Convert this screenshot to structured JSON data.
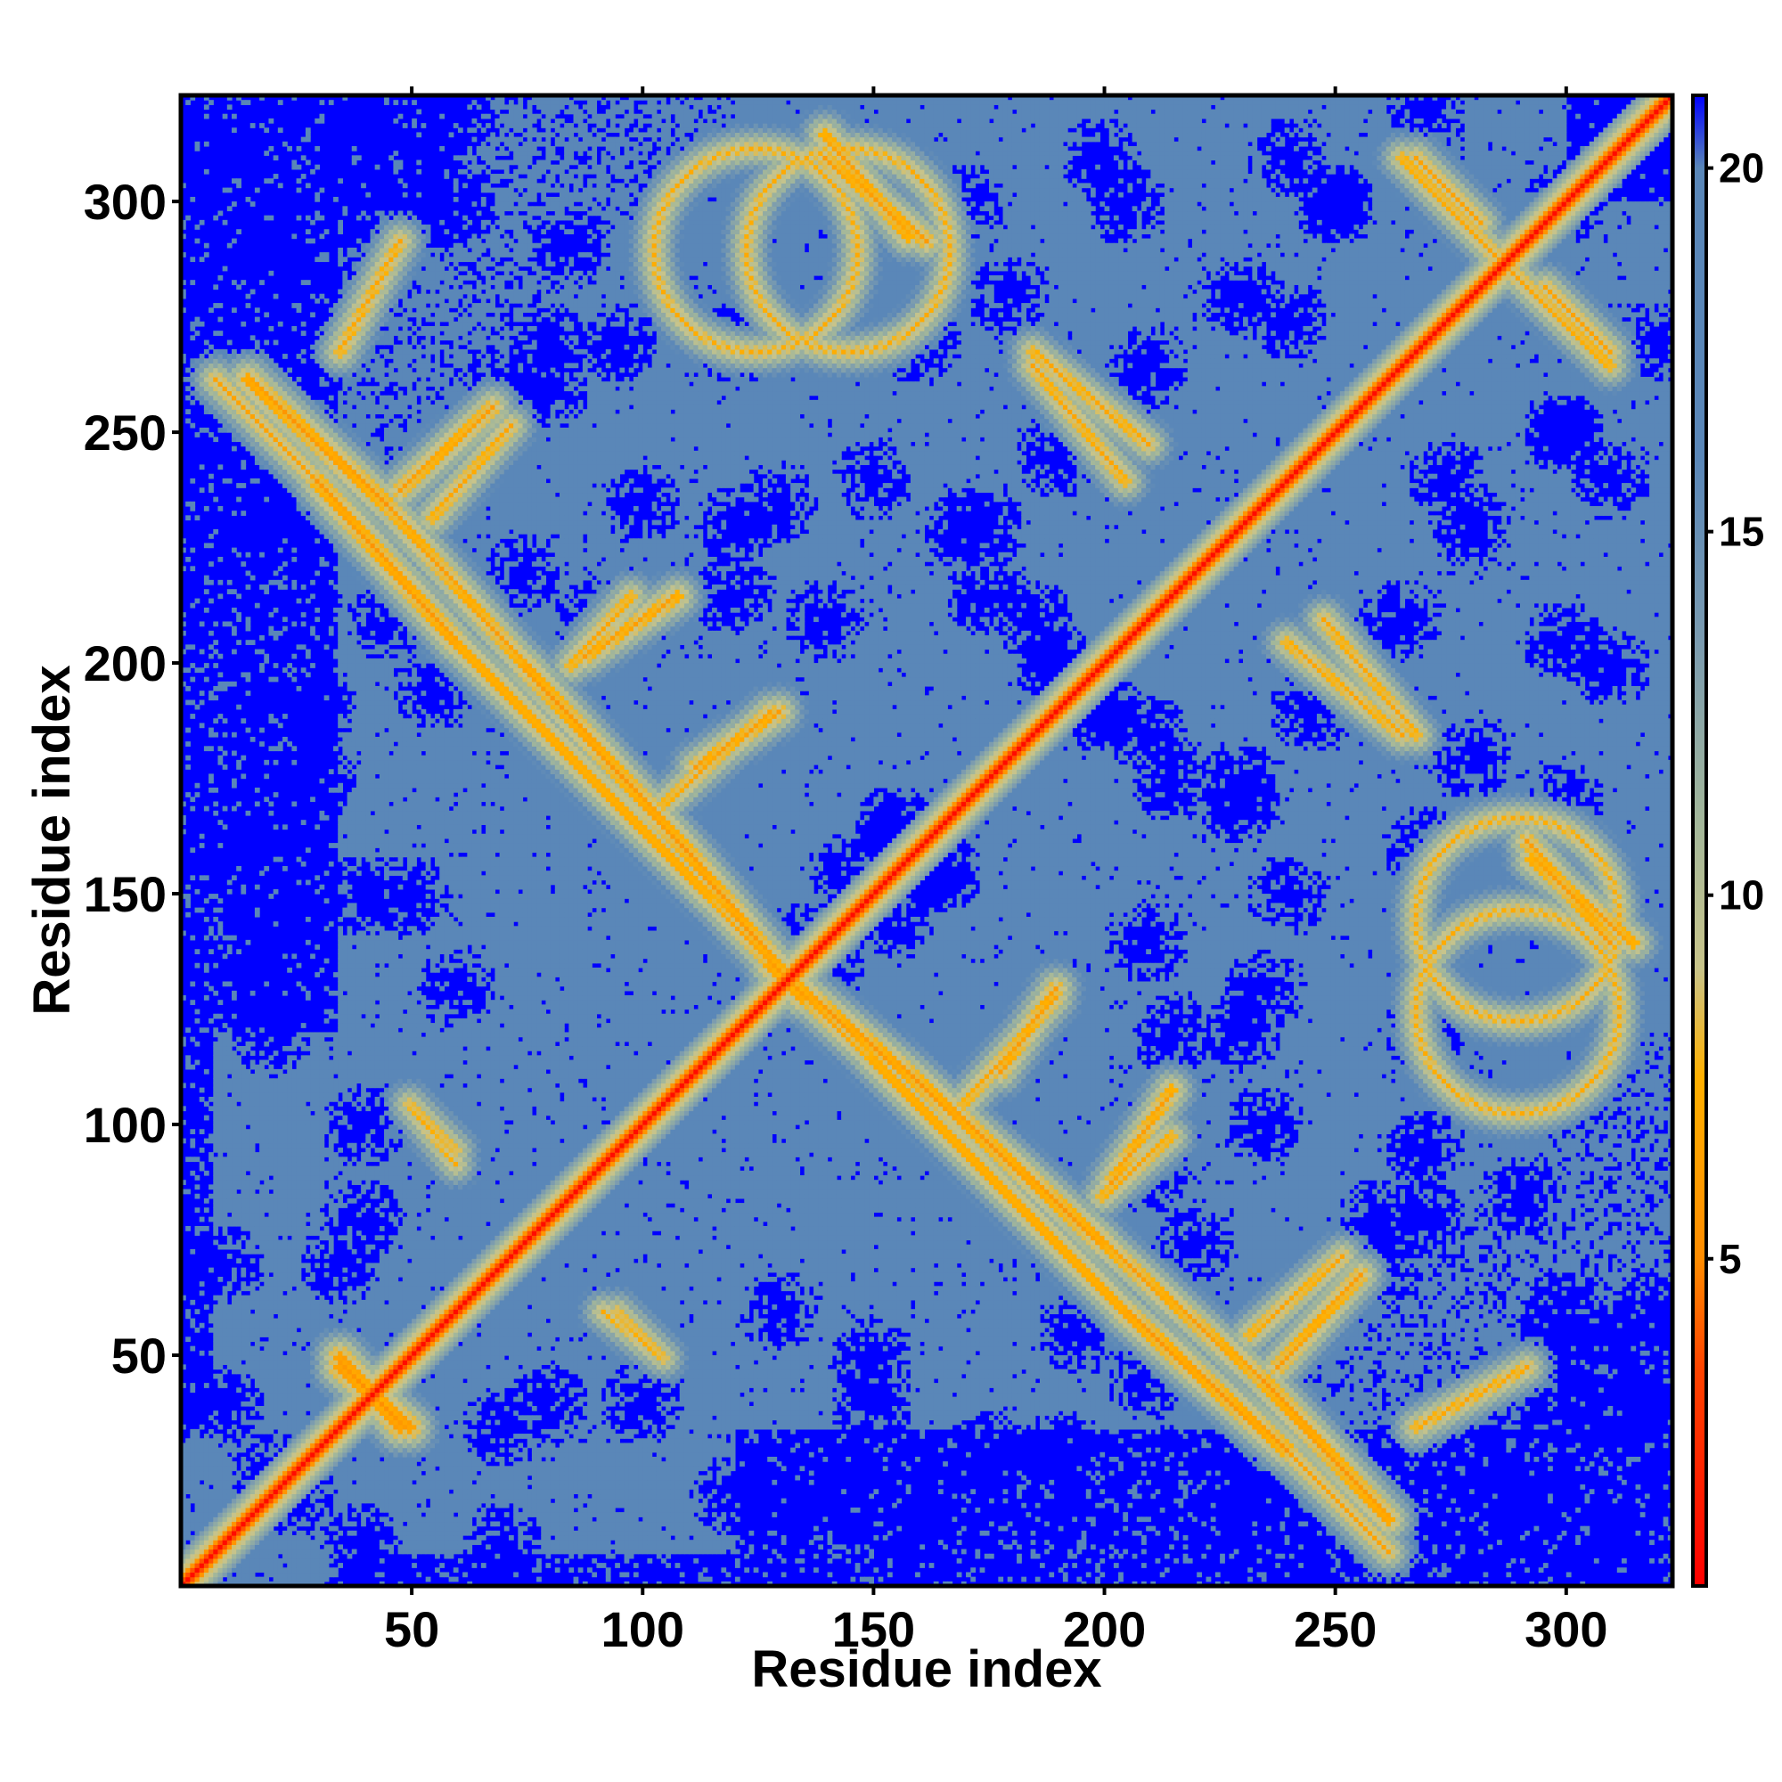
{
  "chart_data": {
    "type": "heatmap",
    "title": "",
    "xlabel": "Residue index",
    "ylabel": "Residue index",
    "xlim": [
      0,
      323
    ],
    "ylim": [
      0,
      323
    ],
    "x_ticks": [
      50,
      100,
      150,
      200,
      250,
      300
    ],
    "y_ticks": [
      50,
      100,
      150,
      200,
      250,
      300
    ],
    "colorbar": {
      "range": [
        0.5,
        21
      ],
      "ticks": [
        5,
        10,
        15,
        20
      ],
      "stops": [
        {
          "value": 0.5,
          "color": "#ff0000"
        },
        {
          "value": 3.5,
          "color": "#ff4400"
        },
        {
          "value": 5.0,
          "color": "#ff8c00"
        },
        {
          "value": 7.5,
          "color": "#ffb000"
        },
        {
          "value": 9.0,
          "color": "#c8c48a"
        },
        {
          "value": 11.0,
          "color": "#a3b79a"
        },
        {
          "value": 13.5,
          "color": "#7a9bb0"
        },
        {
          "value": 16.0,
          "color": "#5a87b8"
        },
        {
          "value": 20.0,
          "color": "#5a87b8"
        },
        {
          "value": 21.0,
          "color": "#0000ff"
        }
      ]
    },
    "symmetric": true,
    "matrix_size": 323,
    "cutoff_value": 21,
    "diagonal_value": 1.0,
    "contact_bands": [
      {
        "type": "antidiagonal",
        "from": [
          8,
          262
        ],
        "to": [
          30,
          240
        ],
        "value": 6.5
      },
      {
        "type": "antidiagonal",
        "from": [
          30,
          240
        ],
        "to": [
          60,
          205
        ],
        "value": 5.5
      },
      {
        "type": "antidiagonal",
        "from": [
          60,
          205
        ],
        "to": [
          90,
          175
        ],
        "value": 6.0
      },
      {
        "type": "antidiagonal",
        "from": [
          90,
          175
        ],
        "to": [
          115,
          150
        ],
        "value": 6.0
      },
      {
        "type": "antidiagonal",
        "from": [
          115,
          150
        ],
        "to": [
          130,
          133
        ],
        "value": 6.5
      },
      {
        "type": "parallel",
        "from": [
          48,
          238
        ],
        "to": [
          68,
          256
        ],
        "value": 6.0
      },
      {
        "type": "parallel",
        "from": [
          88,
          202
        ],
        "to": [
          108,
          215
        ],
        "value": 6.0
      },
      {
        "type": "parallel",
        "from": [
          112,
          178
        ],
        "to": [
          130,
          190
        ],
        "value": 6.0
      },
      {
        "type": "parallel",
        "from": [
          140,
          310
        ],
        "to": [
          162,
          292
        ],
        "value": 6.0
      },
      {
        "type": "ring",
        "center": [
          145,
          290
        ],
        "radius": 22,
        "value": 7.0
      },
      {
        "type": "parallel",
        "from": [
          185,
          268
        ],
        "to": [
          210,
          248
        ],
        "value": 6.5
      },
      {
        "type": "parallel",
        "from": [
          268,
          310
        ],
        "to": [
          282,
          296
        ],
        "value": 6.5
      },
      {
        "type": "parallel",
        "from": [
          284,
          290
        ],
        "to": [
          310,
          265
        ],
        "value": 6.5
      },
      {
        "type": "antidiagonal",
        "from": [
          128,
          135
        ],
        "to": [
          160,
          110
        ],
        "value": 5.5
      },
      {
        "type": "antidiagonal",
        "from": [
          160,
          110
        ],
        "to": [
          200,
          75
        ],
        "value": 5.5
      },
      {
        "type": "antidiagonal",
        "from": [
          200,
          75
        ],
        "to": [
          235,
          45
        ],
        "value": 6.0
      },
      {
        "type": "antidiagonal",
        "from": [
          235,
          45
        ],
        "to": [
          262,
          15
        ],
        "value": 5.5
      },
      {
        "type": "parallel",
        "from": [
          170,
          105
        ],
        "to": [
          190,
          128
        ],
        "value": 6.5
      },
      {
        "type": "parallel",
        "from": [
          200,
          85
        ],
        "to": [
          215,
          98
        ],
        "value": 6.5
      },
      {
        "type": "parallel",
        "from": [
          232,
          55
        ],
        "to": [
          252,
          72
        ],
        "value": 6.5
      },
      {
        "type": "parallel",
        "from": [
          240,
          205
        ],
        "to": [
          265,
          185
        ],
        "value": 6.5
      },
      {
        "type": "ring",
        "center": [
          290,
          125
        ],
        "radius": 22,
        "value": 7.0
      },
      {
        "type": "parallel",
        "from": [
          293,
          158
        ],
        "to": [
          315,
          140
        ],
        "value": 6.0
      },
      {
        "type": "parallel",
        "from": [
          50,
          105
        ],
        "to": [
          60,
          92
        ],
        "value": 7.0
      },
      {
        "type": "parallel",
        "from": [
          95,
          60
        ],
        "to": [
          105,
          50
        ],
        "value": 7.0
      },
      {
        "type": "parallel",
        "from": [
          268,
          35
        ],
        "to": [
          292,
          48
        ],
        "value": 6.5
      },
      {
        "type": "parallel",
        "from": [
          35,
          48
        ],
        "to": [
          50,
          35
        ],
        "value": 5.0
      }
    ],
    "far_cores": [
      [
        205,
        250
      ],
      [
        185,
        210
      ],
      [
        290,
        20
      ],
      [
        230,
        20
      ],
      [
        240,
        40
      ],
      [
        280,
        40
      ],
      [
        235,
        100
      ],
      [
        270,
        95
      ],
      [
        240,
        150
      ],
      [
        270,
        160
      ],
      [
        210,
        140
      ],
      [
        215,
        120
      ],
      [
        290,
        85
      ],
      [
        260,
        70
      ],
      [
        320,
        60
      ],
      [
        300,
        300
      ],
      [
        320,
        310
      ],
      [
        320,
        270
      ],
      [
        300,
        250
      ],
      [
        205,
        300
      ],
      [
        170,
        300
      ],
      [
        120,
        270
      ],
      [
        80,
        260
      ],
      [
        60,
        300
      ],
      [
        40,
        320
      ],
      [
        10,
        310
      ],
      [
        25,
        20
      ],
      [
        40,
        10
      ],
      [
        70,
        10
      ],
      [
        120,
        20
      ],
      [
        160,
        20
      ],
      [
        190,
        30
      ],
      [
        150,
        40
      ],
      [
        100,
        40
      ],
      [
        70,
        35
      ],
      [
        40,
        80
      ],
      [
        10,
        160
      ],
      [
        20,
        140
      ],
      [
        30,
        175
      ],
      [
        45,
        210
      ],
      [
        55,
        195
      ],
      [
        75,
        220
      ],
      [
        90,
        210
      ],
      [
        60,
        130
      ],
      [
        50,
        150
      ],
      [
        80,
        270
      ],
      [
        120,
        230
      ],
      [
        130,
        235
      ],
      [
        145,
        155
      ],
      [
        155,
        165
      ],
      [
        135,
        140
      ],
      [
        165,
        155
      ],
      [
        190,
        200
      ],
      [
        200,
        190
      ],
      [
        170,
        230
      ],
      [
        190,
        245
      ],
      [
        240,
        275
      ],
      [
        250,
        300
      ],
      [
        310,
        240
      ],
      [
        280,
        230
      ],
      [
        180,
        280
      ],
      [
        215,
        175
      ],
      [
        230,
        175
      ],
      [
        250,
        200
      ],
      [
        265,
        210
      ],
      [
        310,
        200
      ]
    ]
  }
}
